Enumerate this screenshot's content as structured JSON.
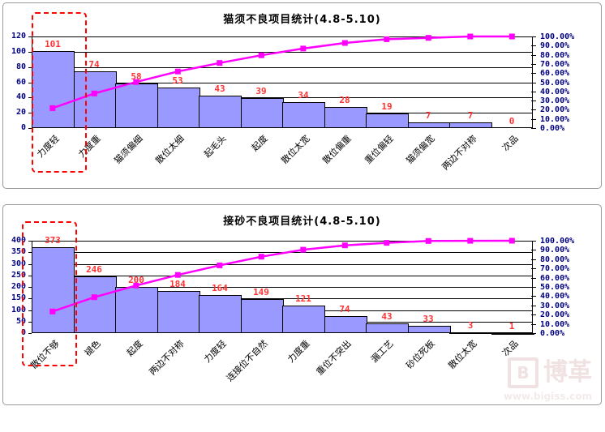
{
  "colors": {
    "bar_fill": "#9999FF",
    "bar_border": "#000000",
    "cumulative_line": "#FF00FF",
    "value_label": "#FF3333",
    "axis_number": "#000080",
    "category_label": "#000000",
    "highlight_box": "#FF0000",
    "gridline": "#000000"
  },
  "watermark": {
    "logo_letter": "B",
    "logo_text": "博革",
    "url_text": "www.bigiss.com"
  },
  "chart_data": [
    {
      "type": "bar",
      "subtype": "pareto-bar-with-cumulative-line",
      "title": "猫须不良项目统计(4.8-5.10)",
      "categories": [
        "力度轻",
        "力度重",
        "猫须偏细",
        "散位太细",
        "起毛头",
        "起度",
        "散位太宽",
        "散位偏重",
        "重位偏轻",
        "猫须偏宽",
        "两边不对称",
        "次品"
      ],
      "values": [
        101,
        74,
        58,
        53,
        43,
        39,
        34,
        28,
        19,
        7,
        7,
        0
      ],
      "cumulative_pct": [
        21.8,
        37.8,
        50.3,
        61.8,
        71.1,
        79.5,
        86.8,
        92.9,
        97.0,
        98.5,
        100.0,
        100.0
      ],
      "ylim": [
        0,
        120
      ],
      "yticks": [
        120,
        100,
        80,
        60,
        40,
        20,
        0
      ],
      "y2lim": [
        0,
        100
      ],
      "y2ticks": [
        "100.00%",
        "90.00%",
        "80.00%",
        "70.00%",
        "60.00%",
        "50.00%",
        "40.00%",
        "30.00%",
        "20.00%",
        "10.00%",
        "0.00%"
      ],
      "grid": true,
      "legend": "none",
      "highlight": {
        "style": "red-dashed-box",
        "categories": [
          "力度轻",
          "力度重"
        ]
      }
    },
    {
      "type": "bar",
      "subtype": "pareto-bar-with-cumulative-line",
      "title": "接砂不良项目统计(4.8-5.10)",
      "categories": [
        "散位不够",
        "褪色",
        "起度",
        "两边不对称",
        "力度轻",
        "连接位不自然",
        "力度重",
        "重位不突出",
        "漏工艺",
        "砂位死板",
        "散位太宽",
        "次品"
      ],
      "values": [
        373,
        246,
        200,
        184,
        164,
        149,
        121,
        74,
        43,
        33,
        3,
        1
      ],
      "cumulative_pct": [
        23.4,
        38.9,
        51.5,
        63.0,
        73.3,
        82.7,
        90.3,
        95.0,
        97.7,
        99.7,
        99.9,
        100.0
      ],
      "ylim": [
        0,
        400
      ],
      "yticks": [
        400,
        350,
        300,
        250,
        200,
        150,
        100,
        50,
        0
      ],
      "y2lim": [
        0,
        100
      ],
      "y2ticks": [
        "100.00%",
        "90.00%",
        "80.00%",
        "70.00%",
        "60.00%",
        "50.00%",
        "40.00%",
        "30.00%",
        "20.00%",
        "10.00%",
        "0.00%"
      ],
      "grid": true,
      "legend": "none",
      "highlight": {
        "style": "red-dashed-box",
        "categories": [
          "散位不够"
        ]
      }
    }
  ]
}
